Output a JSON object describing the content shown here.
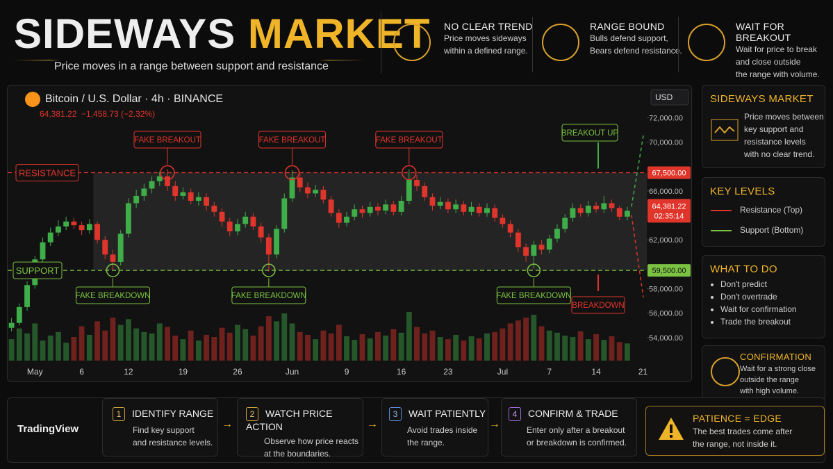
{
  "header": {
    "title_1": "SIDEWAYS",
    "title_2": "MARKET",
    "subtitle": "Price moves in a range between support and resistance"
  },
  "top_cards": [
    {
      "title": "NO CLEAR TREND",
      "lines": [
        "Price moves sideways",
        "within a defined range."
      ]
    },
    {
      "title": "RANGE BOUND",
      "lines": [
        "Bulls defend support,",
        "Bears defend resistance."
      ]
    },
    {
      "title": "WAIT FOR BREAKOUT",
      "lines": [
        "Wait for price to break",
        "and close outside",
        "the range with volume."
      ]
    }
  ],
  "sidebar": {
    "sideways": {
      "title": "SIDEWAYS MARKET",
      "lines": [
        "Price moves between",
        "key support and",
        "resistance levels",
        "with no clear trend."
      ]
    },
    "key_levels": {
      "title": "KEY LEVELS",
      "items": [
        "Resistance (Top)",
        "Support (Bottom)"
      ]
    },
    "what_to_do": {
      "title": "WHAT TO DO",
      "items": [
        "Don't predict",
        "Don't overtrade",
        "Wait for confirmation",
        "Trade the breakout"
      ]
    },
    "confirmation": {
      "title": "CONFIRMATION",
      "lines": [
        "Wait for a strong close",
        "outside the range",
        "with high volume."
      ]
    }
  },
  "brand": "TradingView",
  "steps": [
    {
      "number": 1,
      "title": "IDENTIFY RANGE",
      "lines": [
        "Find key support",
        "and resistance levels."
      ]
    },
    {
      "number": 2,
      "title": "WATCH PRICE ACTION",
      "lines": [
        "Observe how price reacts",
        "at the boundaries."
      ]
    },
    {
      "number": 3,
      "title": "WAIT PATIENTLY",
      "lines": [
        "Avoid trades inside",
        "the range."
      ]
    },
    {
      "number": 4,
      "title": "CONFIRM & TRADE",
      "lines": [
        "Enter only after a breakout",
        "or breakdown is confirmed."
      ]
    }
  ],
  "patience": {
    "title": "PATIENCE = EDGE",
    "lines": [
      "The best trades come after",
      "the range, not inside it."
    ]
  },
  "chart_data": {
    "type": "candlestick",
    "symbol": "Bitcoin / U.S. Dollar · 4h · BINANCE",
    "price": "64,381.22",
    "change": "−1,458.73 (−2.32%)",
    "currency": "USD",
    "up_color": "#3fae49",
    "down_color": "#e0352b",
    "categories": [
      null,
      null,
      null,
      "May",
      null,
      null,
      null,
      null,
      null,
      "6",
      null,
      null,
      null,
      null,
      null,
      "12",
      null,
      null,
      null,
      null,
      null,
      null,
      "19",
      null,
      null,
      null,
      null,
      null,
      null,
      "26",
      null,
      null,
      null,
      null,
      null,
      null,
      "Jun",
      null,
      null,
      null,
      null,
      null,
      null,
      "9",
      null,
      null,
      null,
      null,
      null,
      null,
      "16",
      null,
      null,
      null,
      null,
      null,
      "23",
      null,
      null,
      null,
      null,
      null,
      null,
      "Jul",
      null,
      null,
      null,
      null,
      null,
      "7",
      null,
      null,
      null,
      null,
      null,
      "14",
      null,
      null,
      null,
      null,
      null,
      "21"
    ],
    "open": [
      54800,
      55200,
      56500,
      58300,
      60400,
      61800,
      62600,
      63100,
      63500,
      63200,
      62800,
      63300,
      62000,
      60800,
      60200,
      62500,
      65000,
      65600,
      66200,
      66800,
      67200,
      66400,
      65600,
      65900,
      65200,
      65500,
      64800,
      64300,
      63500,
      62700,
      63300,
      63900,
      63100,
      62200,
      60800,
      62900,
      65400,
      67100,
      66300,
      65800,
      66100,
      65300,
      64200,
      63400,
      63900,
      64500,
      64200,
      64700,
      64400,
      64900,
      64300,
      65200,
      66900,
      66400,
      65500,
      64800,
      65100,
      64500,
      64900,
      64300,
      64700,
      64200,
      64600,
      63800,
      63300,
      62600,
      61400,
      60700,
      61600,
      61200,
      62100,
      62900,
      63800,
      64600,
      64200,
      64800,
      64500,
      65000,
      64600,
      63900,
      null,
      null
    ],
    "high": [
      55600,
      56800,
      58600,
      60700,
      62200,
      63000,
      63600,
      63900,
      63800,
      63500,
      63700,
      63500,
      62300,
      61200,
      62800,
      65400,
      66100,
      66600,
      67200,
      67600,
      67800,
      66800,
      66300,
      66200,
      65900,
      65800,
      65100,
      64600,
      63800,
      63700,
      64300,
      64200,
      63400,
      62500,
      63200,
      65800,
      67700,
      67400,
      66700,
      66500,
      66400,
      65600,
      64500,
      64300,
      64900,
      64800,
      65100,
      65000,
      65300,
      65200,
      65600,
      67800,
      67300,
      66700,
      65800,
      65500,
      65400,
      65300,
      65200,
      65100,
      65000,
      65000,
      64900,
      64100,
      63600,
      62900,
      61700,
      61900,
      62000,
      62400,
      63300,
      64100,
      65000,
      64900,
      65200,
      65100,
      65600,
      65300,
      64800,
      64700,
      null,
      null
    ],
    "low": [
      54500,
      55000,
      56200,
      58000,
      60100,
      61500,
      62300,
      62800,
      62900,
      62400,
      62500,
      61700,
      60400,
      59500,
      59900,
      62200,
      64600,
      65200,
      65800,
      66400,
      66000,
      65200,
      65300,
      64900,
      64800,
      64400,
      63900,
      63100,
      62300,
      62400,
      63000,
      62800,
      61800,
      59400,
      60500,
      62600,
      65100,
      65900,
      65400,
      65500,
      65000,
      63900,
      63000,
      63100,
      63600,
      63800,
      63900,
      64000,
      64100,
      64000,
      64000,
      64900,
      66000,
      65200,
      64400,
      64500,
      64200,
      64200,
      64000,
      64000,
      63900,
      63900,
      63500,
      63000,
      62200,
      61000,
      60200,
      59700,
      60800,
      60900,
      61800,
      62600,
      63500,
      63900,
      63900,
      64200,
      64200,
      64300,
      63600,
      63600,
      null,
      null
    ],
    "close": [
      55200,
      56500,
      58300,
      60400,
      61800,
      62600,
      63100,
      63500,
      63200,
      62800,
      63300,
      62000,
      60800,
      60200,
      62500,
      65000,
      65600,
      66200,
      66800,
      67200,
      66400,
      65600,
      65900,
      65200,
      65500,
      64800,
      64300,
      63500,
      62700,
      63300,
      63900,
      63100,
      62200,
      60800,
      62900,
      65400,
      67100,
      66300,
      65800,
      66100,
      65300,
      64200,
      63400,
      63900,
      64500,
      64200,
      64700,
      64400,
      64900,
      64300,
      65200,
      66900,
      66400,
      65500,
      64800,
      65100,
      64500,
      64900,
      64300,
      64700,
      64200,
      64600,
      63800,
      63300,
      62600,
      61400,
      60700,
      61600,
      61200,
      62100,
      62900,
      63800,
      64600,
      64200,
      64800,
      64500,
      65000,
      64600,
      63900,
      64381.22,
      null,
      null
    ],
    "volume": [
      30,
      45,
      38,
      52,
      28,
      35,
      40,
      25,
      33,
      48,
      36,
      55,
      42,
      60,
      50,
      58,
      45,
      40,
      38,
      52,
      47,
      35,
      30,
      42,
      28,
      36,
      33,
      46,
      39,
      50,
      44,
      35,
      48,
      62,
      55,
      66,
      52,
      40,
      36,
      30,
      42,
      38,
      50,
      34,
      29,
      37,
      31,
      40,
      35,
      44,
      39,
      68,
      47,
      38,
      42,
      33,
      30,
      36,
      28,
      34,
      31,
      38,
      40,
      45,
      52,
      56,
      60,
      64,
      48,
      42,
      39,
      35,
      33,
      41,
      30,
      37,
      29,
      34,
      26,
      24,
      null,
      null
    ],
    "ylim": [
      52000,
      74300
    ],
    "yticks": [
      {
        "value": 54000,
        "label": "54,000.00"
      },
      {
        "value": 56000,
        "label": "56,000.00"
      },
      {
        "value": 58000,
        "label": "58,000.00"
      },
      {
        "value": 62000,
        "label": "62,000.00"
      },
      {
        "value": 66000,
        "label": "66,000.00"
      },
      {
        "value": 70000,
        "label": "70,000.00"
      },
      {
        "value": 72000,
        "label": "72,000.00"
      }
    ],
    "levels": [
      {
        "name": "RESISTANCE",
        "value": 67500,
        "label": "67,500.00",
        "color": "#e0352b"
      },
      {
        "name": "SUPPORT",
        "value": 59500,
        "label": "59,500.00",
        "color": "#7cc242"
      }
    ],
    "last": {
      "value": 64381.22,
      "label": "64,381.22",
      "countdown": "02:35:14"
    },
    "annotations": {
      "fake_breakout": "FAKE BREAKOUT",
      "fake_breakdown": "FAKE BREAKDOWN",
      "breakout_up": "BREAKOUT UP",
      "breakdown": "BREAKDOWN"
    }
  }
}
